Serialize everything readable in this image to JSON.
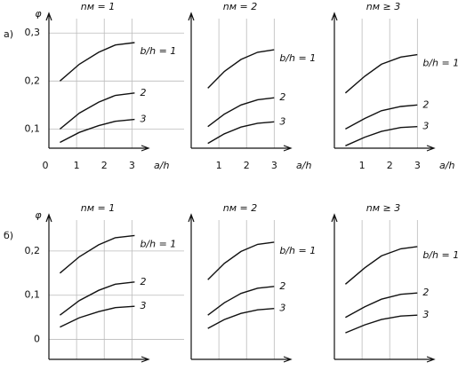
{
  "chart_data": [
    {
      "type": "line",
      "panel_label": "а)",
      "title": "nм = 1",
      "ylabel": "φ",
      "xlabel": "a/h",
      "x": [
        0.4,
        1.1,
        1.8,
        2.4,
        3.1
      ],
      "xlim": [
        0,
        3.6
      ],
      "ylim": [
        0.06,
        0.33
      ],
      "xticks": [
        0,
        1,
        2,
        3
      ],
      "yticks": [
        {
          "value": 0.1,
          "label": "0,1"
        },
        {
          "value": 0.2,
          "label": "0,2"
        },
        {
          "value": 0.3,
          "label": "0,3"
        }
      ],
      "grid": true,
      "series": [
        {
          "name": "b/h = 1",
          "color": "#111111",
          "values": [
            0.2,
            0.235,
            0.26,
            0.275,
            0.28
          ]
        },
        {
          "name": "2",
          "color": "#111111",
          "values": [
            0.1,
            0.133,
            0.156,
            0.17,
            0.175
          ]
        },
        {
          "name": "3",
          "color": "#111111",
          "values": [
            0.072,
            0.093,
            0.107,
            0.116,
            0.12
          ]
        }
      ]
    },
    {
      "type": "line",
      "title": "nм = 2",
      "xlabel": "a/h",
      "x": [
        0.6,
        1.2,
        1.8,
        2.4,
        3.0
      ],
      "xlim": [
        0,
        3.6
      ],
      "ylim": [
        0.06,
        0.33
      ],
      "xticks": [
        1,
        2,
        3
      ],
      "grid": true,
      "series": [
        {
          "name": "b/h = 1",
          "color": "#111111",
          "values": [
            0.185,
            0.22,
            0.245,
            0.26,
            0.265
          ]
        },
        {
          "name": "2",
          "color": "#111111",
          "values": [
            0.105,
            0.131,
            0.15,
            0.161,
            0.165
          ]
        },
        {
          "name": "3",
          "color": "#111111",
          "values": [
            0.07,
            0.09,
            0.104,
            0.112,
            0.115
          ]
        }
      ]
    },
    {
      "type": "line",
      "title": "nм ≥ 3",
      "xlabel": "a/h",
      "x": [
        0.4,
        1.1,
        1.7,
        2.4,
        3.0
      ],
      "xlim": [
        0,
        3.6
      ],
      "ylim": [
        0.06,
        0.33
      ],
      "xticks": [
        1,
        2,
        3
      ],
      "grid": true,
      "series": [
        {
          "name": "b/h = 1",
          "color": "#111111",
          "values": [
            0.175,
            0.21,
            0.235,
            0.25,
            0.255
          ]
        },
        {
          "name": "2",
          "color": "#111111",
          "values": [
            0.1,
            0.122,
            0.138,
            0.147,
            0.15
          ]
        },
        {
          "name": "3",
          "color": "#111111",
          "values": [
            0.065,
            0.083,
            0.095,
            0.103,
            0.105
          ]
        }
      ]
    },
    {
      "type": "line",
      "panel_label": "б)",
      "title": "nм = 1",
      "ylabel": "φ",
      "xlabel": "a/h",
      "x": [
        0.4,
        1.1,
        1.8,
        2.4,
        3.1
      ],
      "xlim": [
        0,
        3.6
      ],
      "ylim": [
        -0.045,
        0.27
      ],
      "xticks": [
        0,
        1,
        2,
        3
      ],
      "yticks": [
        0,
        {
          "value": 0.1,
          "label": "0,1"
        },
        {
          "value": 0.2,
          "label": "0,2"
        }
      ],
      "grid": true,
      "series": [
        {
          "name": "b/h = 1",
          "color": "#111111",
          "values": [
            0.15,
            0.187,
            0.214,
            0.23,
            0.235
          ]
        },
        {
          "name": "2",
          "color": "#111111",
          "values": [
            0.055,
            0.088,
            0.111,
            0.125,
            0.13
          ]
        },
        {
          "name": "3",
          "color": "#111111",
          "values": [
            0.028,
            0.049,
            0.063,
            0.072,
            0.075
          ]
        }
      ]
    },
    {
      "type": "line",
      "title": "nм = 2",
      "xlabel": "a/h",
      "x": [
        0.6,
        1.2,
        1.8,
        2.4,
        3.0
      ],
      "xlim": [
        0,
        3.6
      ],
      "ylim": [
        -0.045,
        0.27
      ],
      "xticks": [
        1,
        2,
        3
      ],
      "grid": true,
      "series": [
        {
          "name": "b/h = 1",
          "color": "#111111",
          "values": [
            0.135,
            0.172,
            0.199,
            0.215,
            0.22
          ]
        },
        {
          "name": "2",
          "color": "#111111",
          "values": [
            0.055,
            0.083,
            0.104,
            0.116,
            0.12
          ]
        },
        {
          "name": "3",
          "color": "#111111",
          "values": [
            0.025,
            0.045,
            0.059,
            0.067,
            0.07
          ]
        }
      ]
    },
    {
      "type": "line",
      "title": "nм ≥ 3",
      "xlabel": "a/h",
      "x": [
        0.4,
        1.1,
        1.7,
        2.4,
        3.0
      ],
      "xlim": [
        0,
        3.6
      ],
      "ylim": [
        -0.045,
        0.27
      ],
      "xticks": [
        1,
        2,
        3
      ],
      "grid": true,
      "series": [
        {
          "name": "b/h = 1",
          "color": "#111111",
          "values": [
            0.125,
            0.162,
            0.189,
            0.205,
            0.21
          ]
        },
        {
          "name": "2",
          "color": "#111111",
          "values": [
            0.05,
            0.074,
            0.091,
            0.102,
            0.105
          ]
        },
        {
          "name": "3",
          "color": "#111111",
          "values": [
            0.015,
            0.033,
            0.045,
            0.053,
            0.055
          ]
        }
      ]
    }
  ]
}
